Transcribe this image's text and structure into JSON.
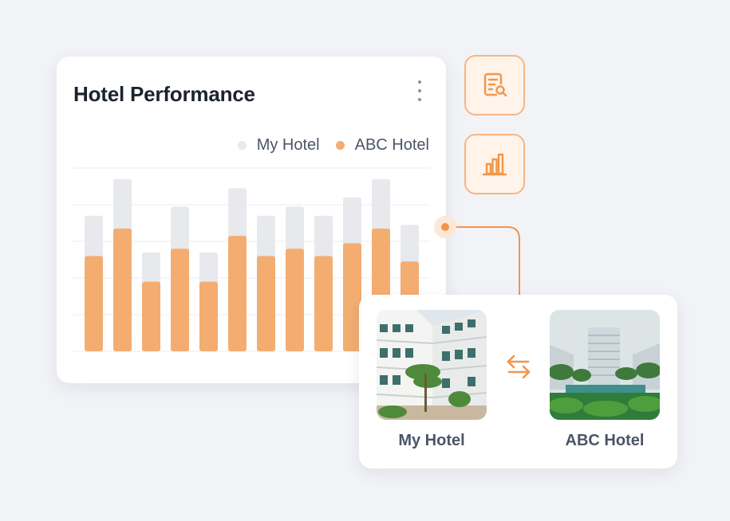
{
  "perf_card": {
    "title": "Hotel Performance",
    "menu_icon": "kebab-menu-icon"
  },
  "legend": {
    "my_hotel": "My Hotel",
    "abc_hotel": "ABC Hotel"
  },
  "colors": {
    "my_hotel": "#e8e9ed",
    "abc_hotel": "#f4ad71",
    "accent": "#f2954a",
    "grid": "#eceef2"
  },
  "chart_data": {
    "type": "bar",
    "stacked_overlay": true,
    "ylim": [
      0,
      100
    ],
    "grid": true,
    "legend_position": "top-right",
    "series": [
      {
        "name": "My Hotel",
        "values": [
          74,
          94,
          54,
          79,
          54,
          89,
          74,
          79,
          74,
          84,
          94,
          69
        ]
      },
      {
        "name": "ABC Hotel",
        "values": [
          52,
          67,
          38,
          56,
          38,
          63,
          52,
          56,
          52,
          59,
          67,
          49
        ]
      }
    ]
  },
  "side_buttons": [
    {
      "icon": "report-search-icon"
    },
    {
      "icon": "bar-chart-icon"
    }
  ],
  "compare_card": {
    "left_label": "My Hotel",
    "right_label": "ABC Hotel",
    "swap_icon": "swap-arrows-icon"
  }
}
